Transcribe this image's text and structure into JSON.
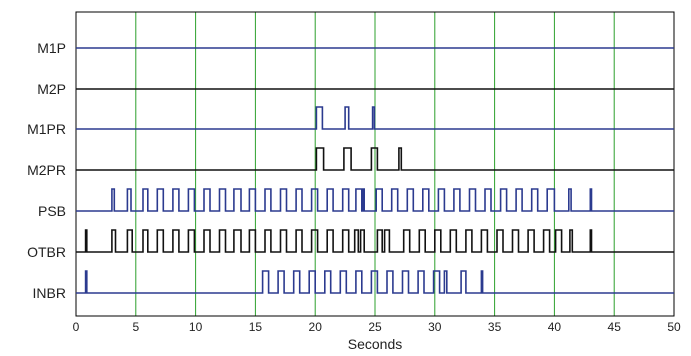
{
  "chart_data": {
    "type": "line",
    "title": "",
    "xlabel": "Seconds",
    "ylabel": "",
    "xlim": [
      0,
      50
    ],
    "xticks": [
      0,
      5,
      10,
      15,
      20,
      25,
      30,
      35,
      40,
      45,
      50
    ],
    "grid": {
      "vertical": true,
      "color": "#2ca02c"
    },
    "signals": [
      {
        "name": "M1P",
        "color": "#2b3a8f",
        "pulses": []
      },
      {
        "name": "M2P",
        "color": "#111111",
        "pulses": []
      },
      {
        "name": "M1PR",
        "color": "#2b3a8f",
        "pulses": [
          [
            20.1,
            20.6
          ],
          [
            22.5,
            22.8
          ],
          [
            24.8,
            24.95
          ]
        ]
      },
      {
        "name": "M2PR",
        "color": "#111111",
        "pulses": [
          [
            20.1,
            20.7
          ],
          [
            22.4,
            23.0
          ],
          [
            24.7,
            25.2
          ],
          [
            27.0,
            27.2
          ]
        ]
      },
      {
        "name": "PSB",
        "color": "#2b3a8f",
        "pulses": [
          [
            3.0,
            3.2
          ],
          [
            4.3,
            4.6
          ],
          [
            5.6,
            6.0
          ],
          [
            6.8,
            7.3
          ],
          [
            8.1,
            8.6
          ],
          [
            9.4,
            9.9
          ],
          [
            10.7,
            11.2
          ],
          [
            12.0,
            12.5
          ],
          [
            13.2,
            13.8
          ],
          [
            14.5,
            15.0
          ],
          [
            15.8,
            16.3
          ],
          [
            17.1,
            17.6
          ],
          [
            18.4,
            18.9
          ],
          [
            19.7,
            20.2
          ],
          [
            21.0,
            21.5
          ],
          [
            22.3,
            22.8
          ],
          [
            23.4,
            23.9
          ],
          [
            24.0,
            24.1
          ],
          [
            25.1,
            25.6
          ],
          [
            26.4,
            26.9
          ],
          [
            27.7,
            28.2
          ],
          [
            29.0,
            29.5
          ],
          [
            30.3,
            30.8
          ],
          [
            31.6,
            32.1
          ],
          [
            32.9,
            33.4
          ],
          [
            34.2,
            34.7
          ],
          [
            35.5,
            36.0
          ],
          [
            36.8,
            37.3
          ],
          [
            38.1,
            38.6
          ],
          [
            39.4,
            40.0
          ],
          [
            41.2,
            41.4
          ],
          [
            43.0,
            43.1
          ]
        ]
      },
      {
        "name": "OTBR",
        "color": "#111111",
        "pulses": [
          [
            0.8,
            0.9
          ],
          [
            3.0,
            3.3
          ],
          [
            4.3,
            4.7
          ],
          [
            5.6,
            6.0
          ],
          [
            6.8,
            7.3
          ],
          [
            8.1,
            8.6
          ],
          [
            9.4,
            9.9
          ],
          [
            10.7,
            11.2
          ],
          [
            12.0,
            12.5
          ],
          [
            13.2,
            13.8
          ],
          [
            14.5,
            15.0
          ],
          [
            15.8,
            16.3
          ],
          [
            17.1,
            17.6
          ],
          [
            18.4,
            18.9
          ],
          [
            19.7,
            20.2
          ],
          [
            21.0,
            21.5
          ],
          [
            22.3,
            22.8
          ],
          [
            23.3,
            23.6
          ],
          [
            23.8,
            24.1
          ],
          [
            25.2,
            25.6
          ],
          [
            25.8,
            26.2
          ],
          [
            27.4,
            27.9
          ],
          [
            28.7,
            29.2
          ],
          [
            30.0,
            30.5
          ],
          [
            31.3,
            31.8
          ],
          [
            32.6,
            33.1
          ],
          [
            33.9,
            34.4
          ],
          [
            35.2,
            35.7
          ],
          [
            36.5,
            37.0
          ],
          [
            37.8,
            38.3
          ],
          [
            39.1,
            39.6
          ],
          [
            40.1,
            40.6
          ],
          [
            41.3,
            41.5
          ],
          [
            43.0,
            43.1
          ]
        ]
      },
      {
        "name": "INBR",
        "color": "#2b3a8f",
        "pulses": [
          [
            0.8,
            0.9
          ],
          [
            15.6,
            16.1
          ],
          [
            16.9,
            17.4
          ],
          [
            18.2,
            18.7
          ],
          [
            19.5,
            20.0
          ],
          [
            20.8,
            21.3
          ],
          [
            22.1,
            22.6
          ],
          [
            23.4,
            23.9
          ],
          [
            24.7,
            25.2
          ],
          [
            26.0,
            26.5
          ],
          [
            27.3,
            27.8
          ],
          [
            28.6,
            29.1
          ],
          [
            29.9,
            30.4
          ],
          [
            30.8,
            31.0
          ],
          [
            32.2,
            32.6
          ],
          [
            33.9,
            34.0
          ]
        ]
      }
    ]
  }
}
